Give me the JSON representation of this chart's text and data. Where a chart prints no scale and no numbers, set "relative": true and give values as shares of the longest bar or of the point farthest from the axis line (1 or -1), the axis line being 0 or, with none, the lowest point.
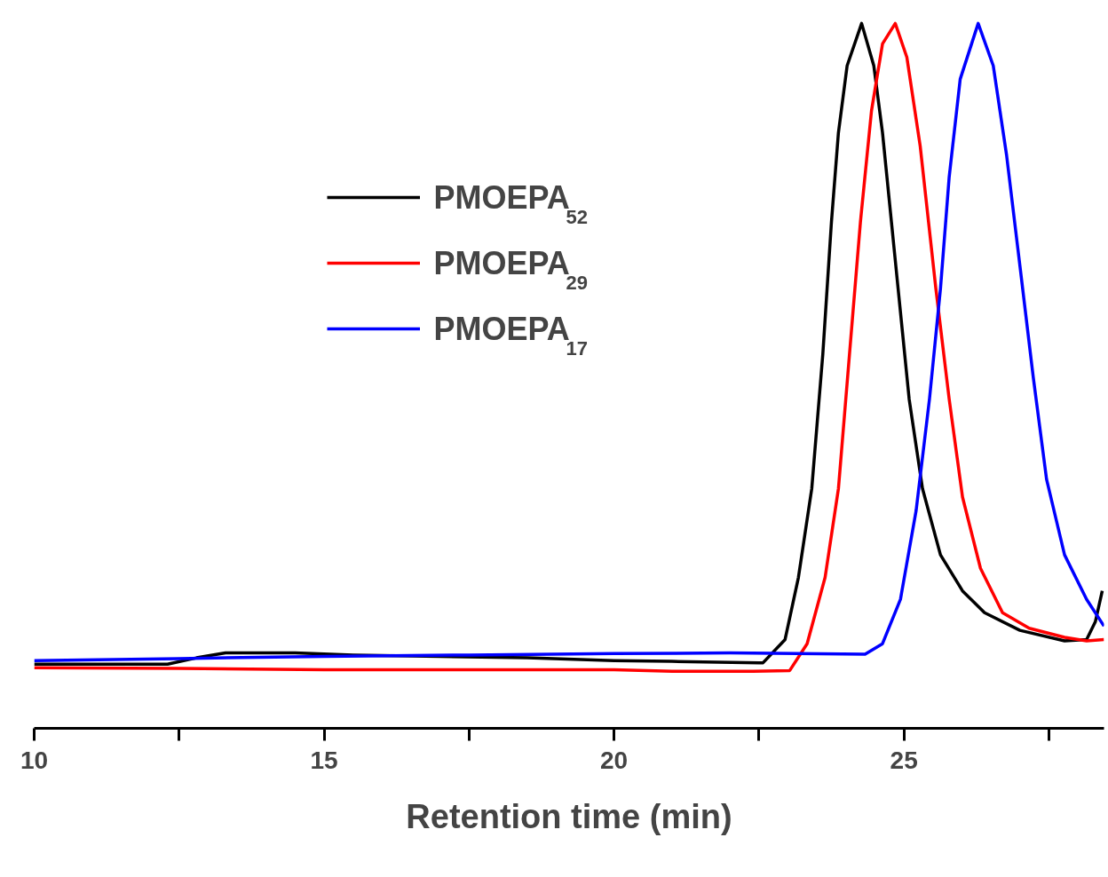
{
  "chart_data": {
    "type": "line",
    "xlabel": "Retention time (min)",
    "relative": true,
    "grid": false,
    "legend": "top left",
    "marker": "none",
    "line_style": "solid",
    "xlim": [
      10,
      28.45
    ],
    "xticks": [
      10,
      {
        "value": 12.5,
        "label": null
      },
      15,
      {
        "value": 17.5,
        "label": null
      },
      20,
      {
        "value": 22.5,
        "label": null
      },
      25,
      {
        "value": 27.5,
        "label": null
      }
    ],
    "series": [
      {
        "name": "PMOEPA$_{52}$",
        "color": "#000000",
        "x": [
          10,
          12.3,
          12.8,
          13.3,
          14.5,
          15.5,
          17,
          18.5,
          20,
          21,
          22.5,
          22.57,
          22.95,
          23.18,
          23.41,
          23.6,
          23.75,
          23.87,
          24.02,
          24.27,
          24.48,
          24.63,
          24.86,
          25.09,
          25.32,
          25.63,
          26.01,
          26.39,
          27.0,
          27.77,
          28.15,
          28.3,
          28.42
        ],
        "values": [
          0.091,
          0.091,
          0.1,
          0.107,
          0.107,
          0.104,
          0.102,
          0.1,
          0.096,
          0.095,
          0.093,
          0.093,
          0.126,
          0.214,
          0.34,
          0.53,
          0.719,
          0.845,
          0.94,
          1.0,
          0.94,
          0.845,
          0.656,
          0.467,
          0.34,
          0.246,
          0.195,
          0.164,
          0.139,
          0.124,
          0.126,
          0.151,
          0.195
        ]
      },
      {
        "name": "PMOEPA$_{29}$",
        "color": "#ff0000",
        "x": [
          10,
          12.5,
          15,
          17.5,
          20,
          21,
          22.4,
          23.03,
          23.33,
          23.64,
          23.87,
          24.06,
          24.25,
          24.44,
          24.63,
          24.85,
          25.05,
          25.28,
          25.55,
          25.78,
          26.01,
          26.32,
          26.7,
          27.16,
          27.77,
          28.15,
          28.45
        ],
        "values": [
          0.086,
          0.085,
          0.083,
          0.083,
          0.083,
          0.081,
          0.081,
          0.082,
          0.12,
          0.214,
          0.34,
          0.53,
          0.719,
          0.876,
          0.971,
          1.0,
          0.952,
          0.826,
          0.624,
          0.467,
          0.328,
          0.227,
          0.164,
          0.142,
          0.129,
          0.124,
          0.126
        ]
      },
      {
        "name": "PMOEPA$_{17}$",
        "color": "#0000ff",
        "x": [
          10,
          12.5,
          15,
          17.5,
          20,
          22,
          24.33,
          24.63,
          24.94,
          25.21,
          25.44,
          25.63,
          25.78,
          25.97,
          26.28,
          26.54,
          26.77,
          27.0,
          27.23,
          27.46,
          27.77,
          28.15,
          28.45
        ],
        "values": [
          0.096,
          0.099,
          0.102,
          0.104,
          0.106,
          0.107,
          0.105,
          0.12,
          0.183,
          0.309,
          0.467,
          0.624,
          0.782,
          0.921,
          1.0,
          0.94,
          0.813,
          0.656,
          0.498,
          0.353,
          0.246,
          0.183,
          0.145
        ]
      }
    ]
  }
}
